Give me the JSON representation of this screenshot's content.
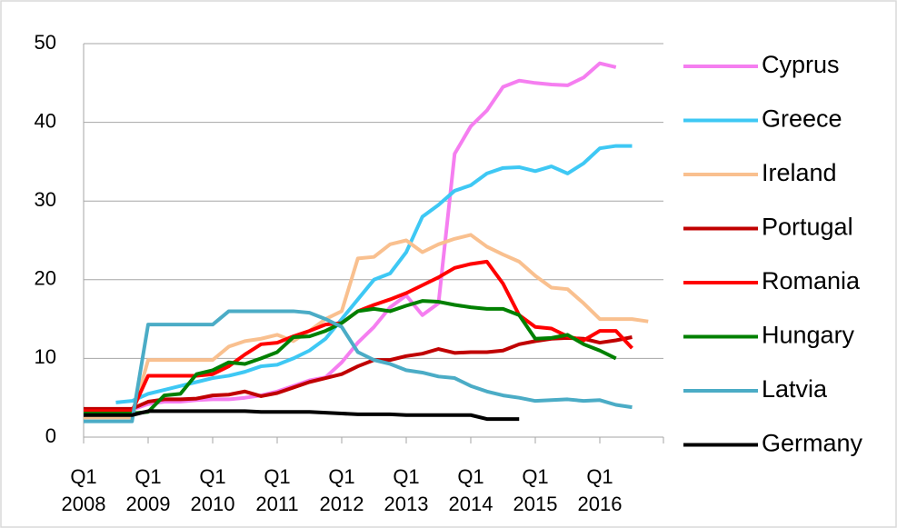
{
  "chart_data": {
    "type": "line",
    "categories": [
      "Q1\n2008",
      null,
      null,
      null,
      "Q1\n2009",
      null,
      null,
      null,
      "Q1\n2010",
      null,
      null,
      null,
      "Q1\n2011",
      null,
      null,
      null,
      "Q1\n2012",
      null,
      null,
      null,
      "Q1\n2013",
      null,
      null,
      null,
      "Q1\n2014",
      null,
      null,
      null,
      "Q1\n2015",
      null,
      null,
      null,
      "Q1\n2016",
      null,
      null,
      null
    ],
    "ylim": [
      0,
      50
    ],
    "yticks": [
      0,
      10,
      20,
      30,
      40,
      50
    ],
    "grid": true,
    "legend": "right",
    "series": [
      {
        "name": "Cyprus",
        "color": "#f57ef0",
        "values": [
          3.5,
          3.5,
          3.5,
          3.5,
          4.2,
          4.5,
          4.5,
          4.7,
          4.8,
          4.8,
          5.0,
          5.3,
          5.8,
          6.5,
          7.2,
          7.6,
          9.5,
          12,
          14,
          16.5,
          18,
          15.5,
          17,
          36,
          39.5,
          41.5,
          44.5,
          45.3,
          45,
          44.8,
          44.7,
          45.7,
          47.5,
          47.0,
          null,
          null
        ]
      },
      {
        "name": "Greece",
        "color": "#3ec8f4",
        "values": [
          null,
          null,
          4.4,
          4.6,
          5.5,
          6.0,
          6.5,
          7.0,
          7.5,
          7.8,
          8.3,
          9.0,
          9.2,
          10.0,
          11.0,
          12.5,
          15.0,
          17.5,
          20.0,
          20.8,
          23.5,
          28.0,
          29.5,
          31.3,
          32.0,
          33.5,
          34.2,
          34.3,
          33.8,
          34.4,
          33.5,
          34.8,
          36.7,
          37.0,
          37.0,
          null
        ]
      },
      {
        "name": "Ireland",
        "color": "#f9c08f",
        "values": [
          2.5,
          2.5,
          2.5,
          2.5,
          9.8,
          9.8,
          9.8,
          9.8,
          9.8,
          11.5,
          12.2,
          12.5,
          13.0,
          12.2,
          13.5,
          15.0,
          16.0,
          22.7,
          22.9,
          24.5,
          25.0,
          23.5,
          24.5,
          25.2,
          25.7,
          24.2,
          23.2,
          22.3,
          20.5,
          19.0,
          18.8,
          17.0,
          15.0,
          15.0,
          15.0,
          14.7
        ]
      },
      {
        "name": "Portugal",
        "color": "#c00000",
        "values": [
          3.6,
          3.6,
          3.6,
          3.6,
          4.5,
          4.8,
          4.8,
          4.9,
          5.3,
          5.4,
          5.8,
          5.2,
          5.6,
          6.3,
          7.0,
          7.5,
          8.0,
          9.0,
          9.8,
          9.8,
          10.3,
          10.6,
          11.2,
          10.7,
          10.8,
          10.8,
          11.0,
          11.8,
          12.2,
          12.5,
          12.6,
          12.5,
          12.0,
          12.3,
          12.7,
          null
        ]
      },
      {
        "name": "Romania",
        "color": "#ff0000",
        "values": [
          3.3,
          3.3,
          3.3,
          3.3,
          7.8,
          7.8,
          7.8,
          7.8,
          8.0,
          9.0,
          10.5,
          11.8,
          12.0,
          12.8,
          13.5,
          14.3,
          14.5,
          16.0,
          16.8,
          17.5,
          18.3,
          19.3,
          20.3,
          21.5,
          22.0,
          22.3,
          19.5,
          15.5,
          14.0,
          13.8,
          12.8,
          12.3,
          13.5,
          13.5,
          11.3,
          null
        ]
      },
      {
        "name": "Hungary",
        "color": "#008000",
        "values": [
          3.0,
          3.0,
          3.0,
          3.0,
          3.2,
          5.3,
          5.5,
          8.0,
          8.5,
          9.5,
          9.3,
          10.0,
          10.8,
          12.7,
          12.8,
          13.5,
          14.5,
          16.0,
          16.3,
          16.0,
          16.7,
          17.3,
          17.2,
          16.8,
          16.5,
          16.3,
          16.3,
          15.5,
          12.5,
          12.6,
          13.0,
          11.8,
          11.0,
          10.0,
          null,
          null
        ]
      },
      {
        "name": "Latvia",
        "color": "#4bacc6",
        "values": [
          2.0,
          2.0,
          2.0,
          2.0,
          14.3,
          14.3,
          14.3,
          14.3,
          14.3,
          16.0,
          16.0,
          16.0,
          16.0,
          16.0,
          15.8,
          15.0,
          14.0,
          10.8,
          9.8,
          9.3,
          8.5,
          8.2,
          7.7,
          7.5,
          6.5,
          5.8,
          5.3,
          5.0,
          4.6,
          4.7,
          4.8,
          4.6,
          4.7,
          4.1,
          3.8,
          null
        ]
      },
      {
        "name": "Germany",
        "color": "#000000",
        "values": [
          2.8,
          2.8,
          2.8,
          2.8,
          3.3,
          3.3,
          3.3,
          3.3,
          3.3,
          3.3,
          3.3,
          3.2,
          3.2,
          3.2,
          3.2,
          3.1,
          3.0,
          2.9,
          2.9,
          2.9,
          2.8,
          2.8,
          2.8,
          2.8,
          2.8,
          2.3,
          2.3,
          2.3,
          null,
          null,
          null,
          null,
          null,
          null,
          null,
          null
        ]
      }
    ]
  }
}
